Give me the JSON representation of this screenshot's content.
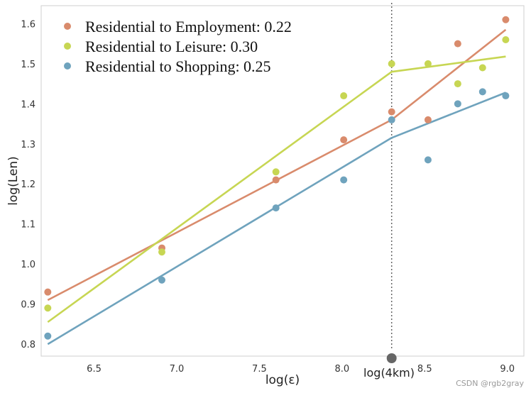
{
  "chart_data": {
    "type": "scatter",
    "xlabel": "log(ε)",
    "ylabel": "log(Len)",
    "xlim": [
      6.18,
      9.1
    ],
    "ylim": [
      0.77,
      1.645
    ],
    "xticks": [
      "6.5",
      "7.0",
      "7.5",
      "8.0",
      "8.5",
      "9.0"
    ],
    "yticks": [
      "0.8",
      "0.9",
      "1.0",
      "1.1",
      "1.2",
      "1.3",
      "1.4",
      "1.5",
      "1.6"
    ],
    "grid": false,
    "legend_position": "top-left",
    "vertical_line": {
      "x": 8.3,
      "label": "log(4km)",
      "color": "#666666"
    },
    "series": [
      {
        "name": "Residential to Employment: 0.22",
        "color": "#d98b6c",
        "points": [
          [
            6.22,
            0.93
          ],
          [
            6.91,
            1.04
          ],
          [
            7.6,
            1.21
          ],
          [
            8.01,
            1.31
          ],
          [
            8.3,
            1.38
          ],
          [
            8.52,
            1.36
          ],
          [
            8.7,
            1.55
          ],
          [
            8.99,
            1.61
          ]
        ],
        "fit": [
          [
            6.22,
            0.91
          ],
          [
            8.3,
            1.36
          ],
          [
            8.99,
            1.585
          ]
        ]
      },
      {
        "name": "Residential to Leisure: 0.30",
        "color": "#c7d653",
        "points": [
          [
            6.22,
            0.89
          ],
          [
            6.91,
            1.03
          ],
          [
            7.6,
            1.23
          ],
          [
            8.01,
            1.42
          ],
          [
            8.3,
            1.5
          ],
          [
            8.52,
            1.5
          ],
          [
            8.7,
            1.45
          ],
          [
            8.85,
            1.49
          ],
          [
            8.99,
            1.56
          ]
        ],
        "fit": [
          [
            6.22,
            0.855
          ],
          [
            8.3,
            1.48
          ],
          [
            8.99,
            1.518
          ]
        ]
      },
      {
        "name": "Residential to Shopping: 0.25",
        "color": "#6fa3bd",
        "points": [
          [
            6.22,
            0.82
          ],
          [
            6.91,
            0.96
          ],
          [
            7.6,
            1.14
          ],
          [
            8.01,
            1.21
          ],
          [
            8.3,
            1.36
          ],
          [
            8.52,
            1.26
          ],
          [
            8.7,
            1.4
          ],
          [
            8.85,
            1.43
          ],
          [
            8.99,
            1.42
          ]
        ],
        "fit": [
          [
            6.22,
            0.8
          ],
          [
            8.3,
            1.315
          ],
          [
            8.99,
            1.428
          ]
        ]
      }
    ]
  },
  "watermark": "CSDN @rgb2gray"
}
